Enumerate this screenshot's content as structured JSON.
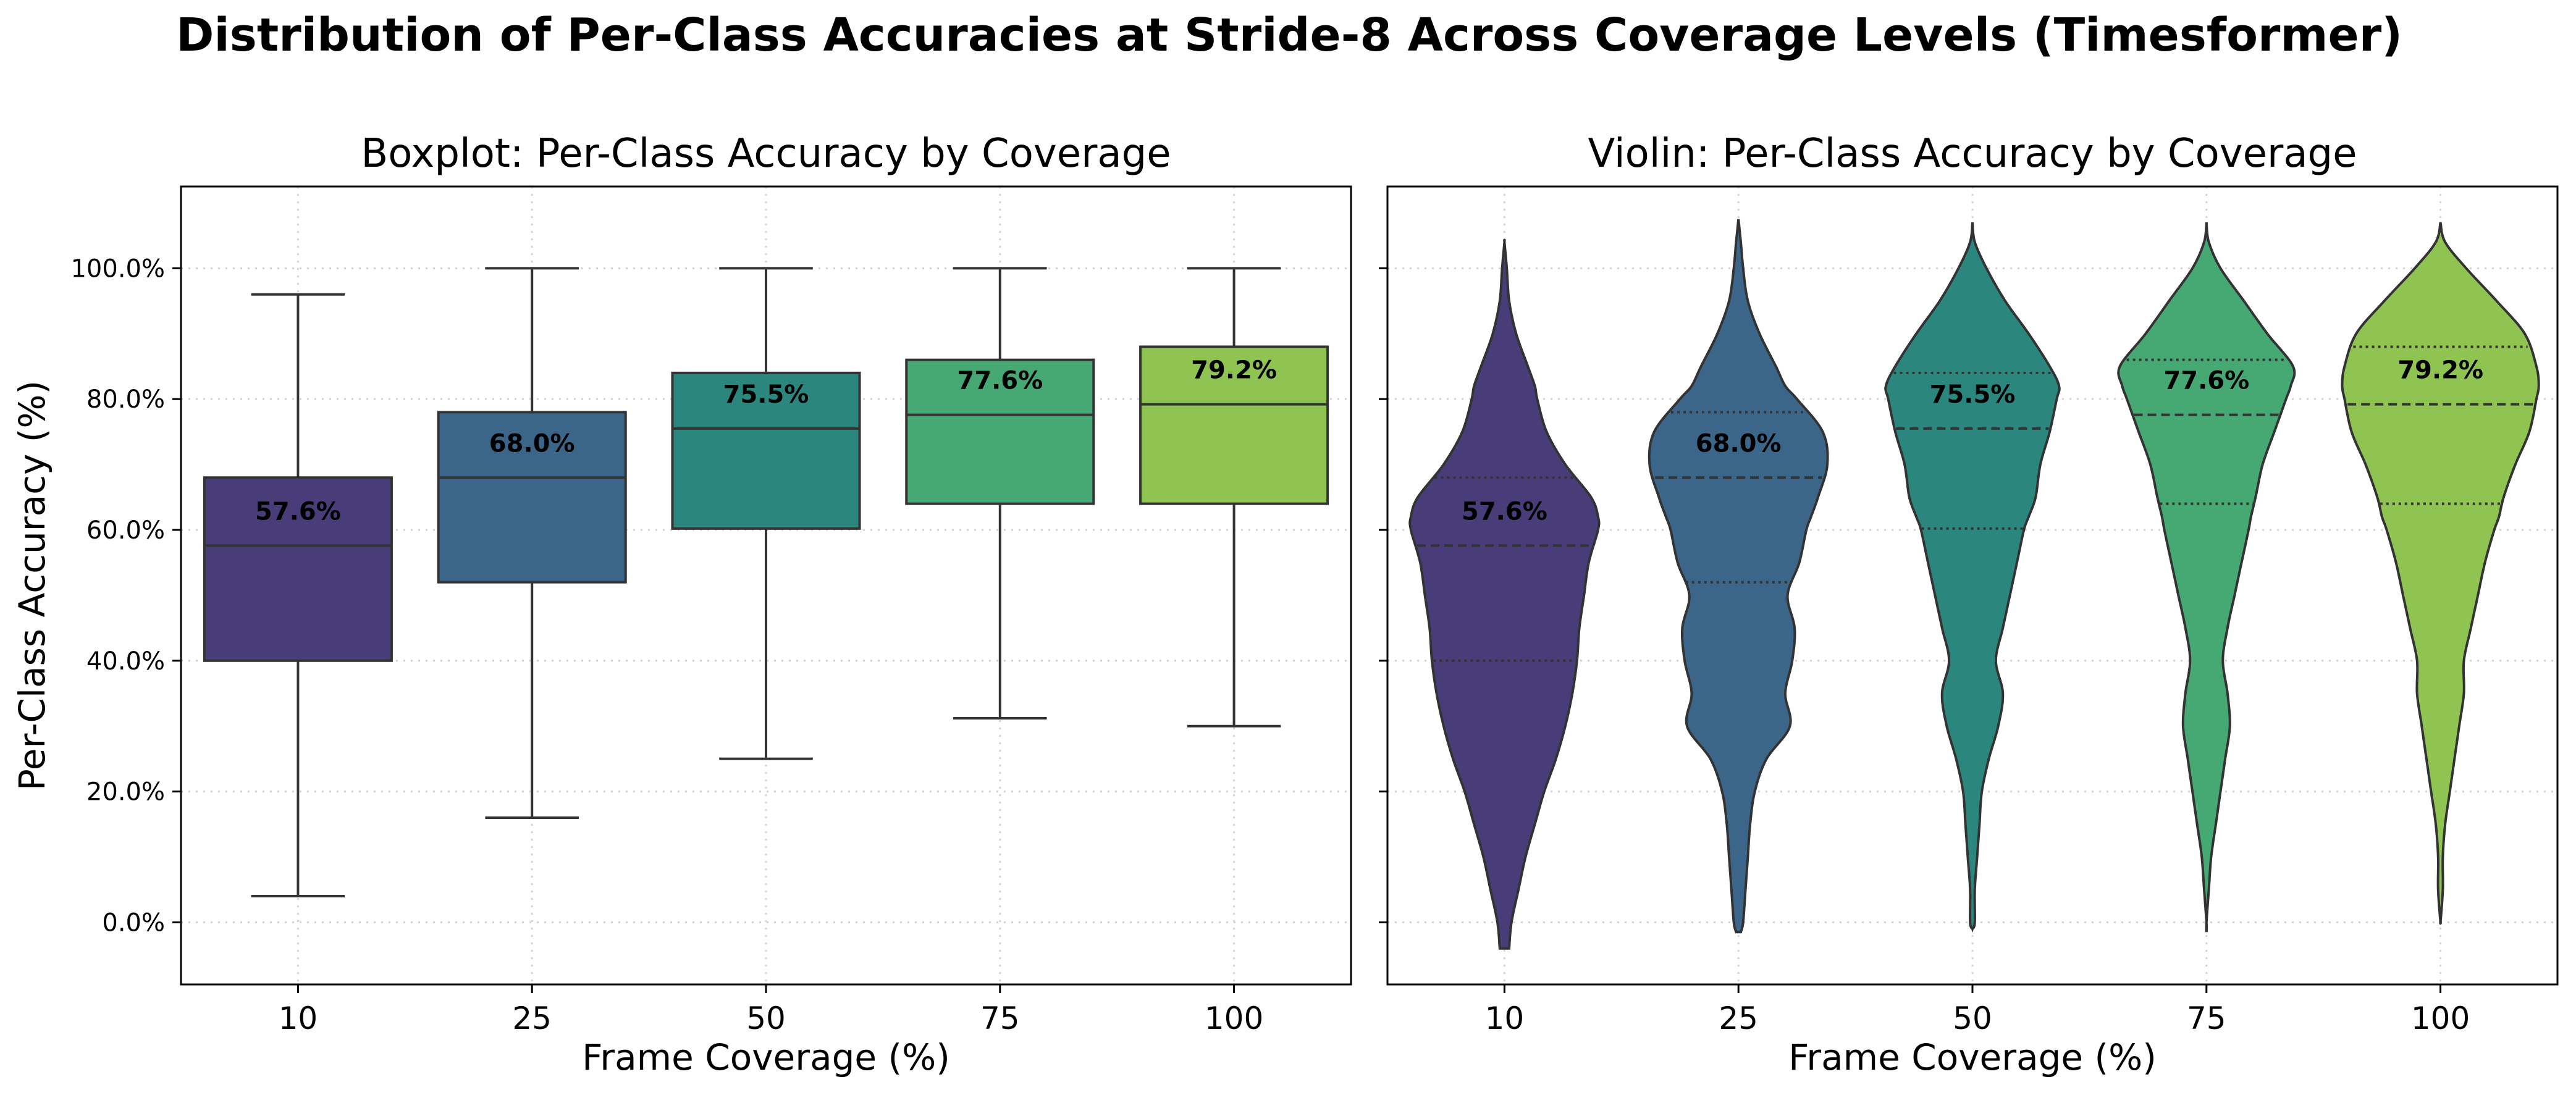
{
  "figure_title": "Distribution of Per-Class Accuracies at Stride-8 Across Coverage Levels (Timesformer)",
  "colors": [
    "#483d78",
    "#3b6689",
    "#2b877e",
    "#46a872",
    "#8fc453"
  ],
  "chart_data": [
    {
      "type": "box",
      "title": "Boxplot: Per-Class Accuracy by Coverage",
      "xlabel": "Frame Coverage (%)",
      "ylabel": "Per-Class Accuracy (%)",
      "ylim": [
        -9.5,
        112.5
      ],
      "yticks": [
        0,
        20,
        40,
        60,
        80,
        100
      ],
      "ytick_labels": [
        "0.0%",
        "20.0%",
        "40.0%",
        "60.0%",
        "80.0%",
        "100.0%"
      ],
      "grid": true,
      "categories": [
        "10",
        "25",
        "50",
        "75",
        "100"
      ],
      "whisker_low": [
        4.0,
        16.0,
        25.0,
        31.2,
        30.0
      ],
      "q1": [
        40.0,
        52.0,
        60.2,
        64.0,
        64.0
      ],
      "median": [
        57.6,
        68.0,
        75.5,
        77.6,
        79.2
      ],
      "q3": [
        68.0,
        78.0,
        84.0,
        86.0,
        88.0
      ],
      "whisker_high": [
        96.0,
        100.0,
        100.0,
        100.0,
        100.0
      ],
      "median_labels": [
        "57.6%",
        "68.0%",
        "75.5%",
        "77.6%",
        "79.2%"
      ]
    },
    {
      "type": "violin",
      "title": "Violin: Per-Class Accuracy by Coverage",
      "xlabel": "Frame Coverage (%)",
      "ylabel": "",
      "ylim": [
        -9.5,
        112.5
      ],
      "grid": true,
      "categories": [
        "10",
        "25",
        "50",
        "75",
        "100"
      ],
      "range_low": [
        -4.0,
        -1.5,
        -1.0,
        -1.5,
        1.0
      ],
      "range_high": [
        104.0,
        107.5,
        107.0,
        107.0,
        107.0
      ],
      "q1": [
        40.0,
        52.0,
        60.2,
        64.0,
        64.0
      ],
      "median": [
        57.6,
        68.0,
        75.5,
        77.6,
        79.2
      ],
      "q3": [
        68.0,
        78.0,
        84.0,
        86.0,
        88.0
      ],
      "median_labels": [
        "57.6%",
        "68.0%",
        "75.5%",
        "77.6%",
        "79.2%"
      ],
      "density_y": [
        -4,
        0,
        5,
        10,
        15,
        20,
        25,
        30,
        35,
        40,
        45,
        50,
        55,
        60,
        62,
        65,
        70,
        75,
        80,
        82,
        85,
        90,
        95,
        100,
        104,
        107.5
      ],
      "half_width": [
        [
          0.02,
          0.03,
          0.06,
          0.09,
          0.13,
          0.17,
          0.22,
          0.26,
          0.29,
          0.31,
          0.32,
          0.34,
          0.36,
          0.4,
          0.4,
          0.37,
          0.26,
          0.18,
          0.14,
          0.13,
          0.1,
          0.05,
          0.02,
          0.01,
          0.0,
          0.0
        ],
        [
          0.01,
          0.02,
          0.03,
          0.04,
          0.05,
          0.07,
          0.12,
          0.22,
          0.2,
          0.23,
          0.24,
          0.21,
          0.26,
          0.29,
          0.31,
          0.34,
          0.38,
          0.36,
          0.25,
          0.2,
          0.16,
          0.09,
          0.04,
          0.02,
          0.01,
          0.0
        ],
        [
          0.0,
          0.01,
          0.01,
          0.02,
          0.03,
          0.04,
          0.07,
          0.11,
          0.13,
          0.1,
          0.13,
          0.16,
          0.19,
          0.22,
          0.24,
          0.27,
          0.29,
          0.33,
          0.36,
          0.37,
          0.33,
          0.24,
          0.14,
          0.06,
          0.01,
          0.0
        ],
        [
          0.0,
          0.0,
          0.01,
          0.02,
          0.04,
          0.06,
          0.08,
          0.1,
          0.09,
          0.07,
          0.09,
          0.12,
          0.15,
          0.18,
          0.19,
          0.21,
          0.24,
          0.29,
          0.34,
          0.36,
          0.37,
          0.26,
          0.16,
          0.06,
          0.01,
          0.0
        ],
        [
          0.0,
          0.0,
          0.01,
          0.01,
          0.02,
          0.04,
          0.06,
          0.08,
          0.1,
          0.1,
          0.13,
          0.16,
          0.19,
          0.23,
          0.25,
          0.27,
          0.32,
          0.38,
          0.41,
          0.42,
          0.41,
          0.36,
          0.24,
          0.11,
          0.02,
          0.0
        ]
      ]
    }
  ]
}
